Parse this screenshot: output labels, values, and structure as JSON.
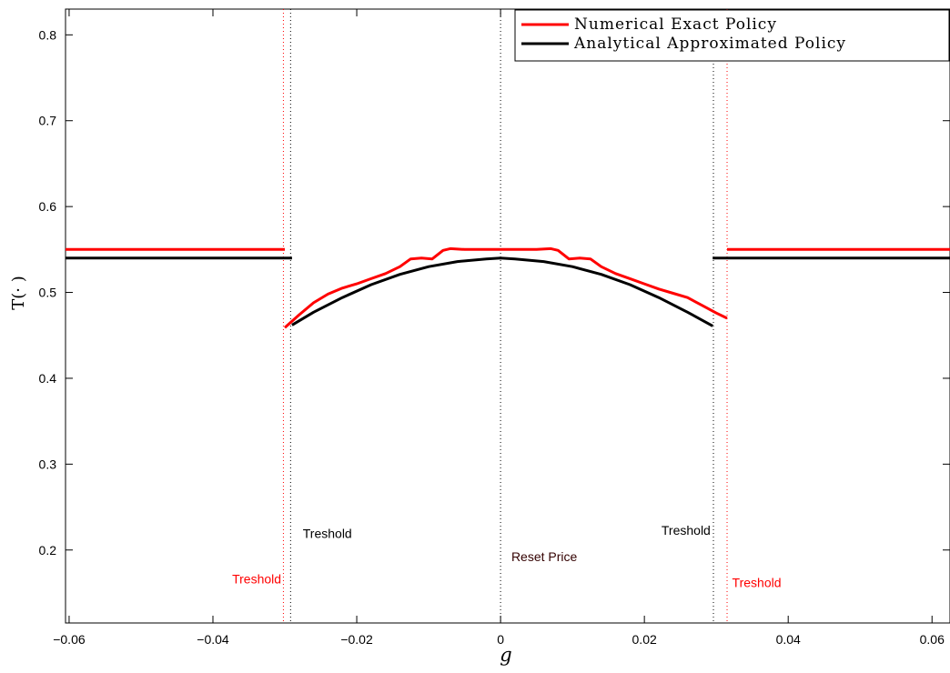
{
  "chart_data": {
    "type": "line",
    "title": "",
    "xlabel": "g",
    "ylabel": "T(· )",
    "xlim": [
      -0.0605,
      0.0625
    ],
    "ylim": [
      0.115,
      0.83
    ],
    "x_ticks": [
      -0.06,
      -0.04,
      -0.02,
      0,
      0.02,
      0.04,
      0.06
    ],
    "x_tick_labels": [
      "−0.06",
      "−0.04",
      "−0.02",
      "0",
      "0.02",
      "0.04",
      "0.06"
    ],
    "y_ticks": [
      0.2,
      0.3,
      0.4,
      0.5,
      0.6,
      0.7,
      0.8
    ],
    "y_tick_labels": [
      "0.2",
      "0.3",
      "0.4",
      "0.5",
      "0.6",
      "0.7",
      "0.8"
    ],
    "grid": false,
    "legend_position": "top-right",
    "series": [
      {
        "name": "Numerical Exact Policy",
        "color": "#ff0000",
        "segments": [
          [
            [
              -0.0605,
              0.55
            ],
            [
              -0.03,
              0.55
            ]
          ],
          [
            [
              -0.03,
              0.459
            ],
            [
              -0.028,
              0.474
            ],
            [
              -0.026,
              0.488
            ],
            [
              -0.024,
              0.498
            ],
            [
              -0.022,
              0.505
            ],
            [
              -0.02,
              0.51
            ],
            [
              -0.018,
              0.516
            ],
            [
              -0.016,
              0.522
            ],
            [
              -0.014,
              0.53
            ],
            [
              -0.0125,
              0.539
            ],
            [
              -0.011,
              0.54
            ],
            [
              -0.0095,
              0.539
            ],
            [
              -0.008,
              0.549
            ],
            [
              -0.007,
              0.551
            ],
            [
              -0.005,
              0.55
            ],
            [
              0,
              0.55
            ],
            [
              0.005,
              0.55
            ],
            [
              0.007,
              0.551
            ],
            [
              0.008,
              0.549
            ],
            [
              0.0095,
              0.539
            ],
            [
              0.011,
              0.54
            ],
            [
              0.0125,
              0.539
            ],
            [
              0.014,
              0.53
            ],
            [
              0.016,
              0.522
            ],
            [
              0.018,
              0.516
            ],
            [
              0.02,
              0.51
            ],
            [
              0.022,
              0.504
            ],
            [
              0.024,
              0.499
            ],
            [
              0.026,
              0.494
            ],
            [
              0.028,
              0.485
            ],
            [
              0.03,
              0.476
            ],
            [
              0.0315,
              0.47
            ]
          ],
          [
            [
              0.0315,
              0.55
            ],
            [
              0.0625,
              0.55
            ]
          ]
        ]
      },
      {
        "name": "Analytical Approximated Policy",
        "color": "#000000",
        "segments": [
          [
            [
              -0.0605,
              0.54
            ],
            [
              -0.029,
              0.54
            ]
          ],
          [
            [
              -0.029,
              0.462
            ],
            [
              -0.026,
              0.477
            ],
            [
              -0.022,
              0.494
            ],
            [
              -0.018,
              0.509
            ],
            [
              -0.014,
              0.521
            ],
            [
              -0.01,
              0.53
            ],
            [
              -0.006,
              0.536
            ],
            [
              -0.002,
              0.539
            ],
            [
              0,
              0.54
            ],
            [
              0.002,
              0.539
            ],
            [
              0.006,
              0.536
            ],
            [
              0.01,
              0.53
            ],
            [
              0.014,
              0.521
            ],
            [
              0.018,
              0.509
            ],
            [
              0.022,
              0.494
            ],
            [
              0.026,
              0.477
            ],
            [
              0.0295,
              0.461
            ]
          ],
          [
            [
              0.0295,
              0.54
            ],
            [
              0.0625,
              0.54
            ]
          ]
        ]
      }
    ],
    "vlines": [
      {
        "x": -0.0302,
        "color": "#ff0000"
      },
      {
        "x": -0.0292,
        "color": "#000000"
      },
      {
        "x": 0,
        "color": "#000000"
      },
      {
        "x": 0.0296,
        "color": "#000000"
      },
      {
        "x": 0.0315,
        "color": "#ff0000"
      }
    ],
    "annotations": [
      {
        "text": "Treshold",
        "x": -0.0275,
        "y": 0.214,
        "color": "#000000",
        "anchor": "start"
      },
      {
        "text": "Treshold",
        "x": -0.0305,
        "y": 0.161,
        "color": "#ff0000",
        "anchor": "end"
      },
      {
        "text": "Reset Price",
        "x": 0.0015,
        "y": 0.187,
        "color": "#330000",
        "anchor": "start"
      },
      {
        "text": "Treshold",
        "x": 0.0292,
        "y": 0.218,
        "color": "#000000",
        "anchor": "end"
      },
      {
        "text": "Treshold",
        "x": 0.0322,
        "y": 0.157,
        "color": "#ff0000",
        "anchor": "start"
      }
    ]
  }
}
